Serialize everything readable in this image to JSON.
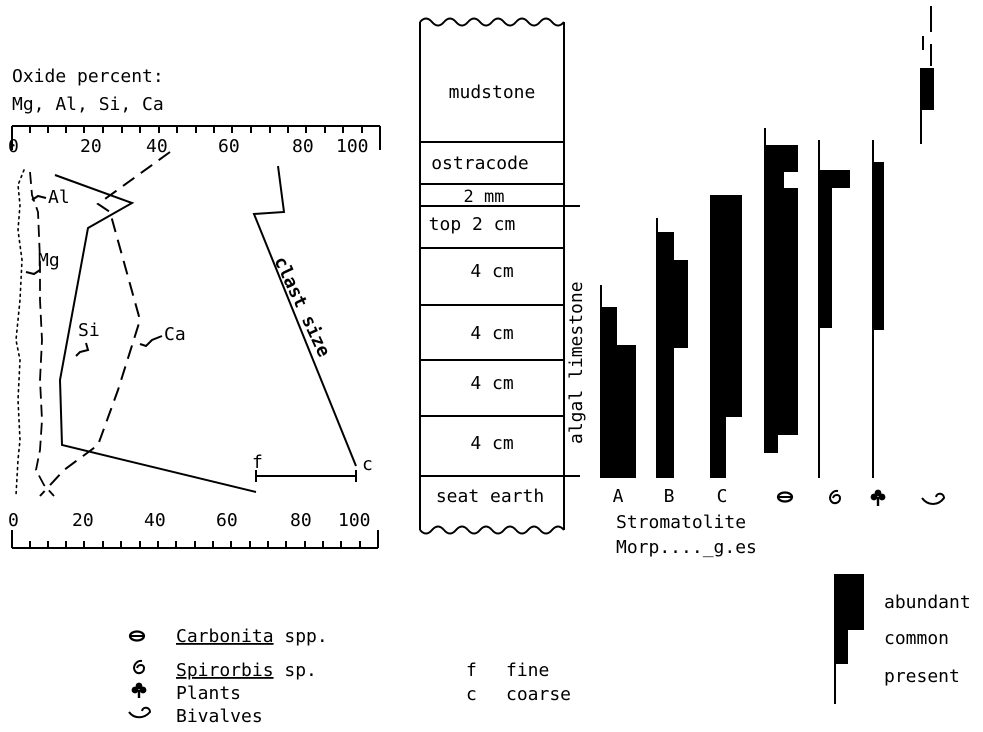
{
  "oxide_panel": {
    "title_line1": "Oxide percent:",
    "title_line2": "Mg, Al, Si, Ca",
    "top_ticks": [
      "0",
      "20",
      "40",
      "60",
      "80",
      "100"
    ],
    "bottom_ticks": [
      "0",
      "20",
      "40",
      "60",
      "80",
      "100"
    ],
    "labels": {
      "al": "Al",
      "mg": "Mg",
      "si": "Si",
      "ca": "Ca"
    },
    "clast_label": "clast size",
    "clast_scale_fine": "f",
    "clast_scale_coarse": "c"
  },
  "column": {
    "layers": [
      "mudstone",
      "ostracode",
      "2 mm",
      "top 2 cm",
      "4 cm",
      "4 cm",
      "4 cm",
      "4 cm",
      "seat earth"
    ],
    "side_label": "algal limestone"
  },
  "abundance": {
    "labels": [
      "A",
      "B",
      "C"
    ],
    "title_line1": "Stromatolite",
    "title_line2": "Morp...._g.es"
  },
  "key": {
    "items": [
      {
        "name": "Carbonita",
        "suffix": " spp.",
        "icon": "carbonita-icon"
      },
      {
        "name": "Spirorbis",
        "suffix": "  sp.",
        "icon": "spirorbis-icon"
      },
      {
        "name": "Plants",
        "suffix": "",
        "icon": "plant-icon"
      },
      {
        "name": "Bivalves",
        "suffix": "",
        "icon": "bivalve-icon"
      }
    ],
    "clast_key": [
      {
        "abbr": "f",
        "text": "fine"
      },
      {
        "abbr": "c",
        "text": "coarse"
      }
    ],
    "abundance_key": [
      "abundant",
      "common",
      "present"
    ]
  }
}
